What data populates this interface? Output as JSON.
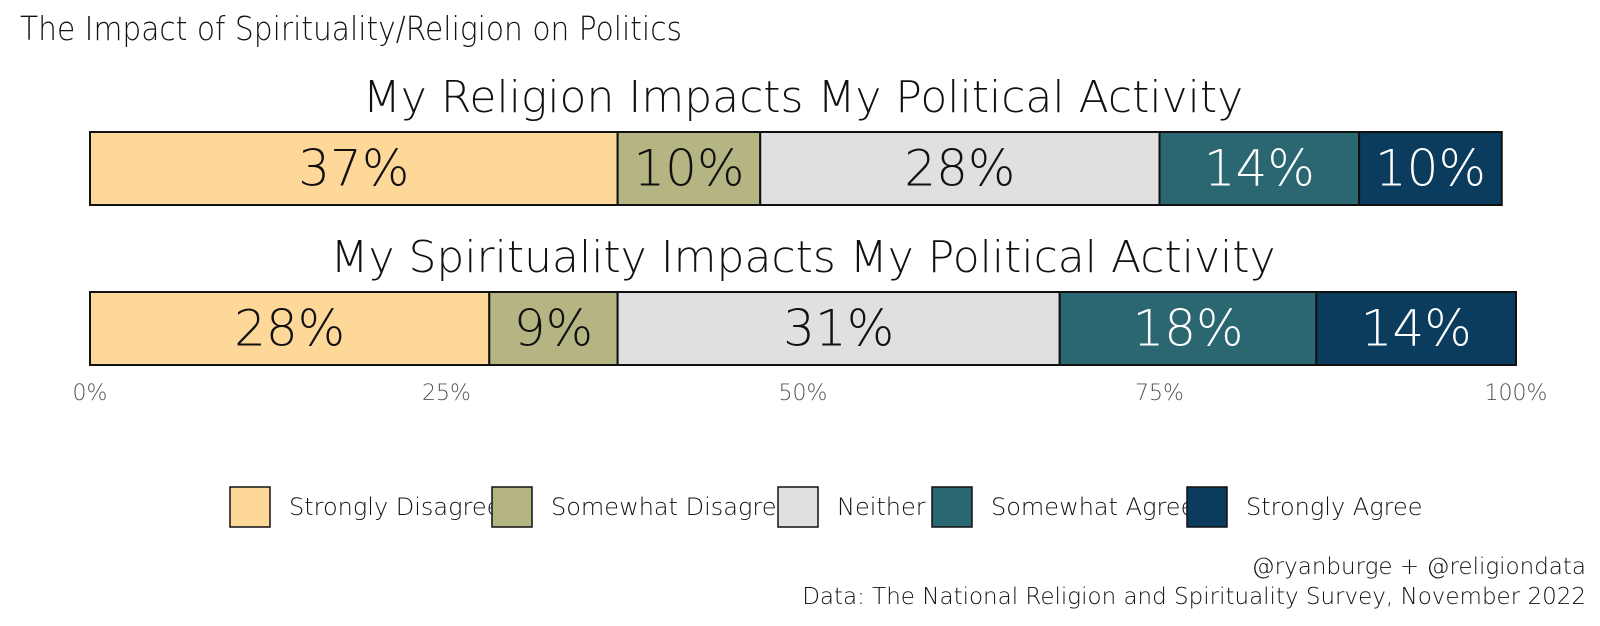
{
  "chart_data": {
    "type": "bar",
    "orientation": "horizontal-stacked",
    "title": "The Impact of Spirituality/Religion on Politics",
    "categories": [
      "My Religion Impacts My Political Activity",
      "My Spirituality Impacts My Political Activity"
    ],
    "series": [
      {
        "name": "Strongly Disagree",
        "values": [
          37,
          28
        ],
        "labels": [
          "37%",
          "28%"
        ],
        "color": "#FDD898",
        "text_color": "#111111"
      },
      {
        "name": "Somewhat Disagree",
        "values": [
          10,
          9
        ],
        "labels": [
          "10%",
          "9%"
        ],
        "color": "#B5B583",
        "text_color": "#111111"
      },
      {
        "name": "Neither",
        "values": [
          28,
          31
        ],
        "labels": [
          "28%",
          "31%"
        ],
        "color": "#E0E0E0",
        "text_color": "#111111"
      },
      {
        "name": "Somewhat Agree",
        "values": [
          14,
          18
        ],
        "labels": [
          "14%",
          "18%"
        ],
        "color": "#2B6770",
        "text_color": "#ffffff"
      },
      {
        "name": "Strongly Agree",
        "values": [
          10,
          14
        ],
        "labels": [
          "10%",
          "14%"
        ],
        "color": "#0B3C5D",
        "text_color": "#ffffff"
      }
    ],
    "xlim": [
      0,
      100
    ],
    "xticks": [
      {
        "value": 0,
        "label": "0%"
      },
      {
        "value": 25,
        "label": "25%"
      },
      {
        "value": 50,
        "label": "50%"
      },
      {
        "value": 75,
        "label": "75%"
      },
      {
        "value": 100,
        "label": "100%"
      }
    ],
    "grid": false,
    "legend_position": "bottom",
    "caption": [
      "@ryanburge + @religiondata",
      "Data: The National Religion and Spirituality Survey, November 2022"
    ]
  }
}
